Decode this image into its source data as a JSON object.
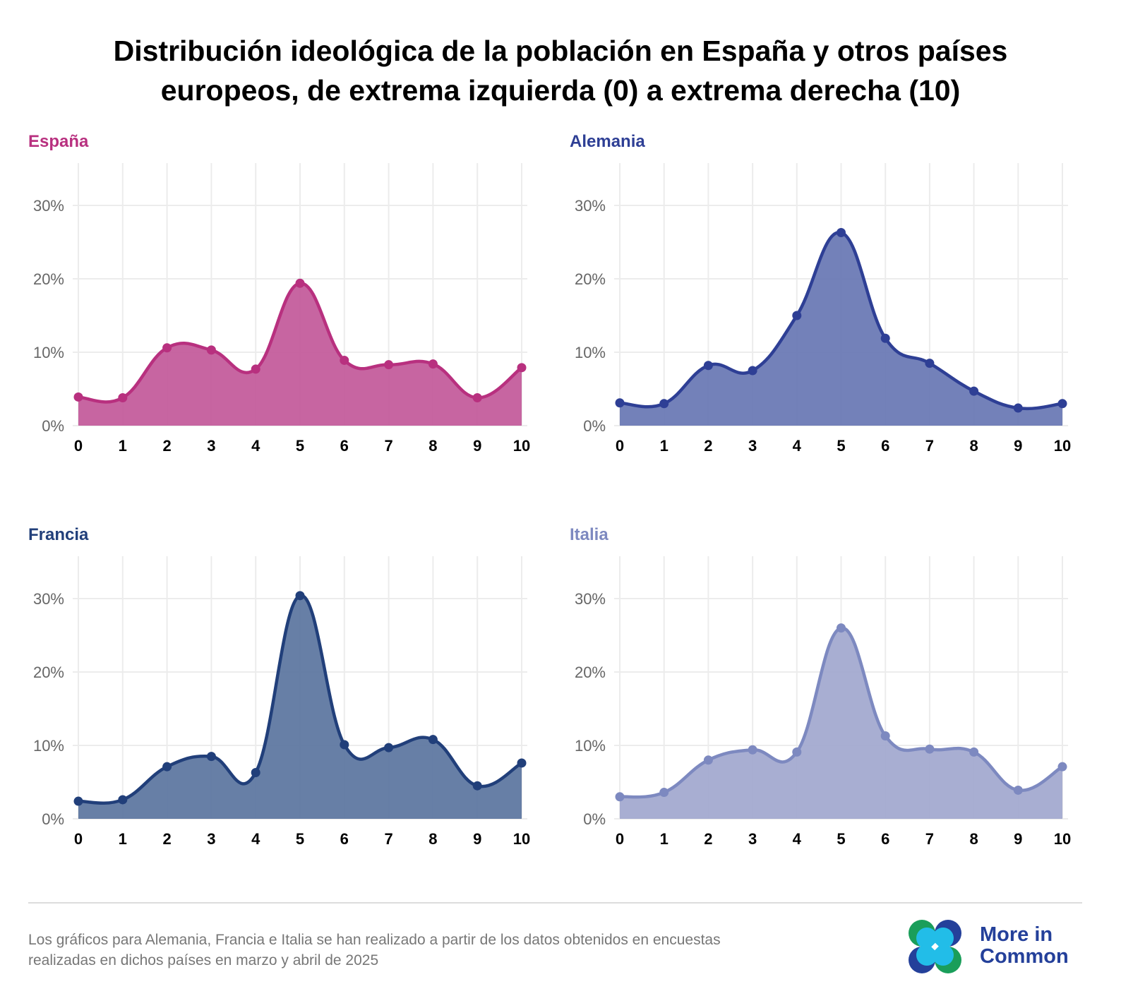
{
  "title": {
    "line1": "Distribución ideológica de la población en España y otros países",
    "line2": "europeos, de extrema izquierda (0) a extrema derecha (10)"
  },
  "footer": {
    "line1": "Los gráficos para Alemania, Francia e Italia se han realizado a partir de los datos obtenidos en encuestas",
    "line2": "realizadas en dichos países en marzo y abril de 2025"
  },
  "logo": {
    "line1": "More in",
    "line2": "Common"
  },
  "chart_data": [
    {
      "type": "area",
      "title": "España",
      "color_line": "#b8307f",
      "color_fill": "#c45d9c",
      "x": [
        0,
        1,
        2,
        3,
        4,
        5,
        6,
        7,
        8,
        9,
        10
      ],
      "values": [
        3.9,
        3.8,
        10.6,
        10.3,
        7.7,
        19.4,
        8.9,
        8.3,
        8.4,
        3.8,
        7.9
      ],
      "xticks": [
        "0",
        "1",
        "2",
        "3",
        "4",
        "5",
        "6",
        "7",
        "8",
        "9",
        "10"
      ],
      "yticks": [
        "0%",
        "10%",
        "20%",
        "30%"
      ],
      "ylim": [
        0,
        35
      ],
      "grid": true
    },
    {
      "type": "area",
      "title": "Alemania",
      "color_line": "#2e3f95",
      "color_fill": "#6b7ab5",
      "x": [
        0,
        1,
        2,
        3,
        4,
        5,
        6,
        7,
        8,
        9,
        10
      ],
      "values": [
        3.1,
        3.0,
        8.2,
        7.5,
        15.0,
        26.3,
        11.9,
        8.5,
        4.7,
        2.4,
        3.0
      ],
      "xticks": [
        "0",
        "1",
        "2",
        "3",
        "4",
        "5",
        "6",
        "7",
        "8",
        "9",
        "10"
      ],
      "yticks": [
        "0%",
        "10%",
        "20%",
        "30%"
      ],
      "ylim": [
        0,
        35
      ],
      "grid": true
    },
    {
      "type": "area",
      "title": "Francia",
      "color_line": "#213f7a",
      "color_fill": "#5f78a1",
      "x": [
        0,
        1,
        2,
        3,
        4,
        5,
        6,
        7,
        8,
        9,
        10
      ],
      "values": [
        2.4,
        2.6,
        7.1,
        8.5,
        6.3,
        30.4,
        10.1,
        9.7,
        10.8,
        4.5,
        7.6
      ],
      "xticks": [
        "0",
        "1",
        "2",
        "3",
        "4",
        "5",
        "6",
        "7",
        "8",
        "9",
        "10"
      ],
      "yticks": [
        "0%",
        "10%",
        "20%",
        "30%"
      ],
      "ylim": [
        0,
        35
      ],
      "grid": true
    },
    {
      "type": "area",
      "title": "Italia",
      "color_line": "#7d89c0",
      "color_fill": "#a3aad0",
      "x": [
        0,
        1,
        2,
        3,
        4,
        5,
        6,
        7,
        8,
        9,
        10
      ],
      "values": [
        3.0,
        3.6,
        8.0,
        9.4,
        9.1,
        26.0,
        11.3,
        9.5,
        9.1,
        3.9,
        7.1
      ],
      "xticks": [
        "0",
        "1",
        "2",
        "3",
        "4",
        "5",
        "6",
        "7",
        "8",
        "9",
        "10"
      ],
      "yticks": [
        "0%",
        "10%",
        "20%",
        "30%"
      ],
      "ylim": [
        0,
        35
      ],
      "grid": true
    }
  ]
}
